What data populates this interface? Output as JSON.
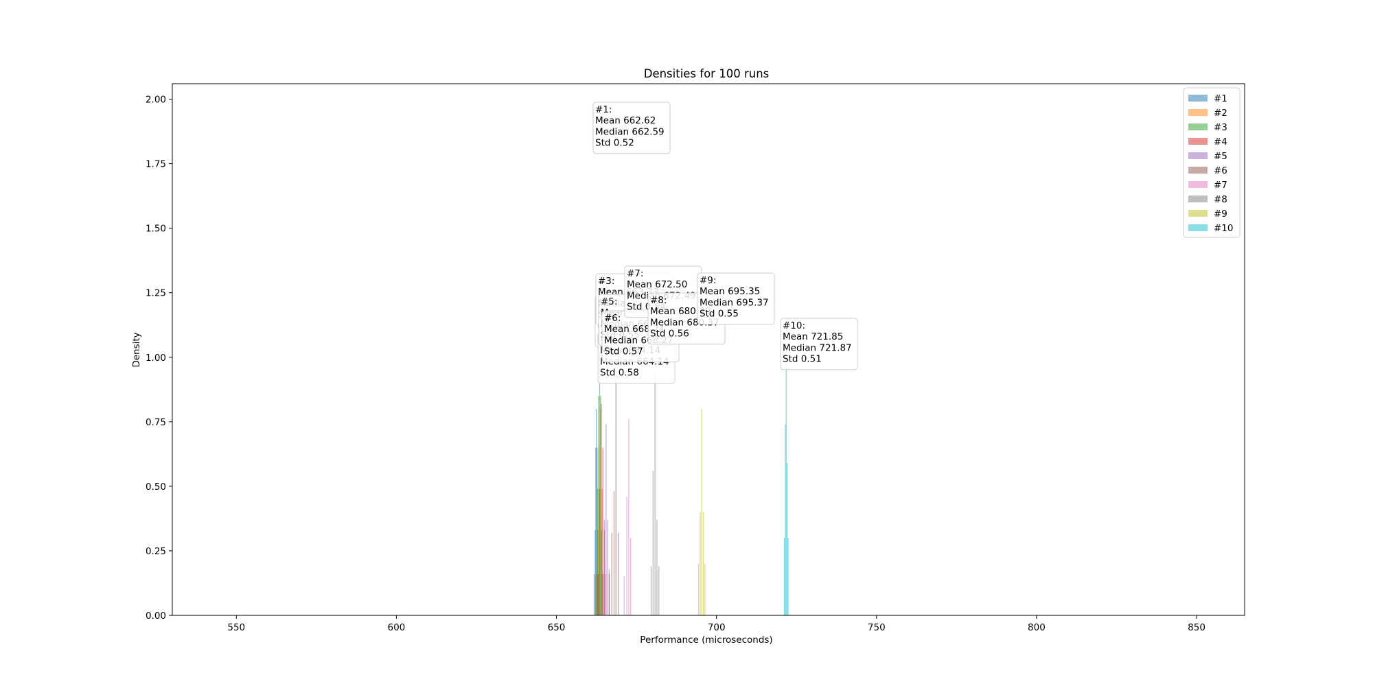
{
  "chart_data": {
    "type": "bar",
    "title": "Densities for 100 runs",
    "xlabel": "Performance (microseconds)",
    "ylabel": "Density",
    "xlim": [
      530,
      865
    ],
    "ylim": [
      0,
      2.06
    ],
    "xticks": [
      550,
      600,
      650,
      700,
      750,
      800,
      850
    ],
    "yticks": [
      0.0,
      0.25,
      0.5,
      0.75,
      1.0,
      1.25,
      1.5,
      1.75,
      2.0
    ],
    "xtick_labels": [
      "550",
      "600",
      "650",
      "700",
      "750",
      "800",
      "850"
    ],
    "ytick_labels": [
      "0.00",
      "0.25",
      "0.50",
      "0.75",
      "1.00",
      "1.25",
      "1.50",
      "1.75",
      "2.00"
    ],
    "grid": false,
    "legend_position": "top-right",
    "series": [
      {
        "name": "#1",
        "color": "#1f77b4",
        "bins": [
          [
            661.8,
            0.16
          ],
          [
            662.1,
            0.33
          ],
          [
            662.3,
            0.65
          ],
          [
            662.5,
            0.8
          ],
          [
            662.7,
            0.65
          ],
          [
            662.9,
            0.33
          ],
          [
            663.2,
            0.16
          ]
        ]
      },
      {
        "name": "#2",
        "color": "#ff7f0e",
        "bins": [
          [
            662.3,
            0.16
          ],
          [
            662.8,
            0.33
          ],
          [
            663.3,
            0.65
          ],
          [
            663.8,
            0.8
          ],
          [
            664.3,
            0.49
          ],
          [
            664.8,
            0.16
          ]
        ]
      },
      {
        "name": "#3",
        "color": "#2ca02c",
        "bins": [
          [
            662.6,
            0.16
          ],
          [
            662.9,
            0.49
          ],
          [
            663.2,
            0.85
          ],
          [
            663.5,
            1.02
          ],
          [
            663.8,
            0.85
          ],
          [
            664.1,
            0.33
          ],
          [
            664.4,
            0.16
          ]
        ]
      },
      {
        "name": "#4",
        "color": "#d62728",
        "bins": [
          [
            663.0,
            0.16
          ],
          [
            663.5,
            0.49
          ],
          [
            664.0,
            0.82
          ],
          [
            664.5,
            0.65
          ],
          [
            665.0,
            0.33
          ],
          [
            665.5,
            0.16
          ]
        ]
      },
      {
        "name": "#5",
        "color": "#9467bd",
        "bins": [
          [
            664.0,
            0.16
          ],
          [
            665.0,
            0.37
          ],
          [
            665.5,
            0.74
          ],
          [
            666.0,
            0.37
          ],
          [
            666.5,
            0.18
          ]
        ]
      },
      {
        "name": "#6",
        "color": "#8c564b",
        "bins": [
          [
            666.5,
            0.16
          ],
          [
            667.3,
            0.32
          ],
          [
            668.0,
            0.48
          ],
          [
            668.6,
            0.95
          ],
          [
            669.4,
            0.32
          ]
        ]
      },
      {
        "name": "#7",
        "color": "#e377c2",
        "bins": [
          [
            671.2,
            0.15
          ],
          [
            672.0,
            0.46
          ],
          [
            672.6,
            0.76
          ],
          [
            673.2,
            0.3
          ]
        ]
      },
      {
        "name": "#8",
        "color": "#7f7f7f",
        "bins": [
          [
            679.6,
            0.19
          ],
          [
            680.2,
            0.56
          ],
          [
            680.8,
            0.93
          ],
          [
            681.4,
            0.37
          ],
          [
            682.0,
            0.19
          ]
        ]
      },
      {
        "name": "#9",
        "color": "#bcbd22",
        "bins": [
          [
            694.4,
            0.2
          ],
          [
            694.9,
            0.4
          ],
          [
            695.4,
            0.8
          ],
          [
            695.9,
            0.4
          ],
          [
            696.4,
            0.2
          ]
        ]
      },
      {
        "name": "#10",
        "color": "#17becf",
        "bins": [
          [
            721.2,
            0.3
          ],
          [
            721.5,
            0.74
          ],
          [
            721.8,
            1.04
          ],
          [
            722.1,
            0.59
          ],
          [
            722.4,
            0.3
          ]
        ]
      }
    ],
    "annotations": [
      {
        "series": "#1",
        "lines": [
          "#1:",
          "Mean 662.62",
          "Median 662.59",
          "Std 0.52"
        ]
      },
      {
        "series": "#2",
        "lines": [
          "#2:",
          "Mean 663.24",
          "Median 663.18",
          "Std 0.57"
        ]
      },
      {
        "series": "#3",
        "lines": [
          "#3:",
          "Mean 663.33",
          "Median 663.34",
          "Std 0.51"
        ]
      },
      {
        "series": "#4",
        "lines": [
          "#4:",
          "Mean 664.14",
          "Median 664.14",
          "Std 0.58"
        ]
      },
      {
        "series": "#5",
        "lines": [
          "#5:",
          "Mean 665.50",
          "Median 665.47",
          "Std 0.55"
        ]
      },
      {
        "series": "#6",
        "lines": [
          "#6:",
          "Mean 668.24",
          "Median 668.27",
          "Std 0.57"
        ]
      },
      {
        "series": "#7",
        "lines": [
          "#7:",
          "Mean 672.50",
          "Median 672.49",
          "Std 0.54"
        ]
      },
      {
        "series": "#8",
        "lines": [
          "#8:",
          "Mean 680.39",
          "Median 680.37",
          "Std 0.56"
        ]
      },
      {
        "series": "#9",
        "lines": [
          "#9:",
          "Mean 695.35",
          "Median 695.37",
          "Std 0.55"
        ]
      },
      {
        "series": "#10",
        "lines": [
          "#10:",
          "Mean 721.85",
          "Median 721.87",
          "Std 0.51"
        ]
      }
    ]
  }
}
